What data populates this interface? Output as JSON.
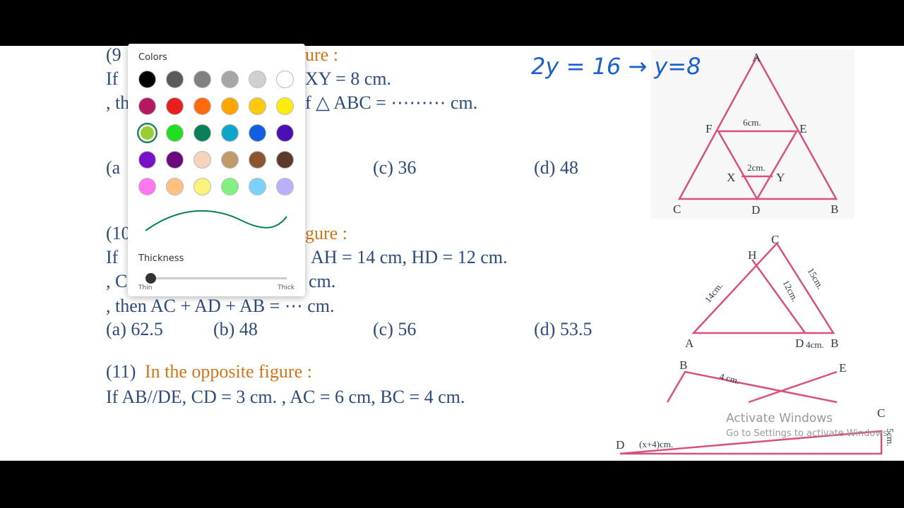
{
  "document": {
    "q9": {
      "number": "(9",
      "heading": "ure :",
      "line1_start": "If",
      "line1_end": "XY = 8 cm.",
      "line2_start": ", th",
      "line2_end": "f △ ABC = ⋯⋯⋯ cm.",
      "option_a": "(a",
      "option_c": "(c) 36",
      "option_d": "(d) 48"
    },
    "q10": {
      "number": "(10",
      "heading": "gure :",
      "line1_start": "If",
      "line1_end": "AH = 14 cm, HD = 12 cm.",
      "line2_start": ", C",
      "line2_end": "cm.",
      "line3": ", then AC + AD + AB = ⋯ cm.",
      "option_a": "(a) 62.5",
      "option_b": "(b) 48",
      "option_c": "(c) 56",
      "option_d": "(d) 53.5"
    },
    "q11": {
      "number": "(11)",
      "heading": "In the opposite figure :",
      "line1": "If AB//DE, CD = 3 cm. , AC = 6 cm, BC = 4 cm."
    },
    "handwriting": "2y = 16 → y=8",
    "figure1": {
      "A": "A",
      "B": "B",
      "C": "C",
      "D": "D",
      "E": "E",
      "F": "F",
      "X": "X",
      "Y": "Y",
      "top_length": "6cm.",
      "inner_length": "2cm."
    },
    "figure2": {
      "A": "A",
      "B": "B",
      "C": "C",
      "D": "D",
      "H": "H",
      "left_length": "14cm.",
      "inner_length": "12cm.",
      "right_length": "15cm.",
      "base_length": "4cm."
    },
    "figure3": {
      "B": "B",
      "E": "E",
      "C": "C",
      "D": "D",
      "top_length": "4 cm.",
      "left_length": "(x+4)cm.",
      "right_length": "5cm."
    }
  },
  "color_picker": {
    "title": "Colors",
    "palette": [
      "#000000",
      "#5a5a5a",
      "#808080",
      "#a6a6a6",
      "#d0d0d0",
      "#ffffff",
      "#b5195f",
      "#e81f1f",
      "#ff6a0f",
      "#ffa500",
      "#ffc90e",
      "#ffeb0f",
      "#9acd32",
      "#22dd22",
      "#0a7f5a",
      "#0fa5c8",
      "#0f5fe0",
      "#4a0fb5",
      "#7a0fc8",
      "#6a0a7f",
      "#f5d3bd",
      "#c19a6b",
      "#8b5530",
      "#5a3a28",
      "#ff77ee",
      "#ffc080",
      "#fff27a",
      "#80f080",
      "#7ad0ff",
      "#b8b0f8"
    ],
    "selected": 12,
    "thickness_label": "Thickness",
    "thin": "Thin",
    "thick": "Thick"
  },
  "watermark": {
    "title": "Activate Windows",
    "subtitle": "Go to Settings to activate Windows."
  }
}
